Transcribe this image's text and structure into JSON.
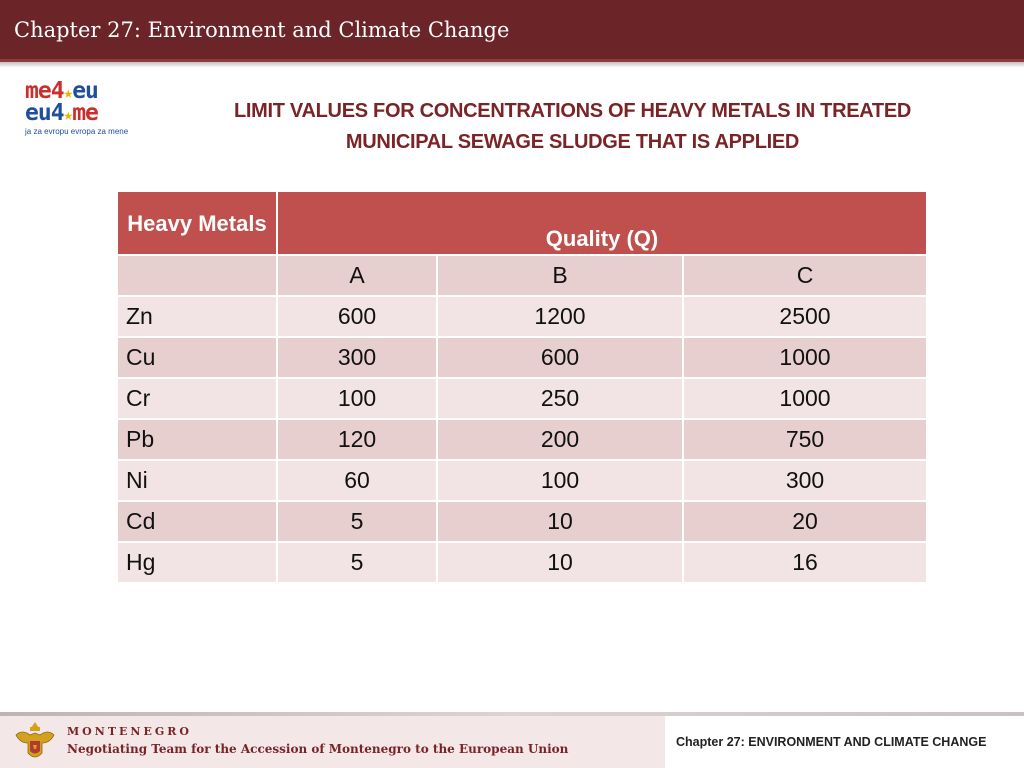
{
  "header": {
    "title": "Chapter 27: Environment and Climate Change"
  },
  "logo": {
    "line1_a": "me4",
    "line1_b": "eu",
    "line2_a": "eu4",
    "line2_b": "me",
    "tagline": "ja za evropu evropa za mene"
  },
  "page_title": "LIMIT VALUES FOR CONCENTRATIONS OF HEAVY METALS IN TREATED MUNICIPAL SEWAGE SLUDGE THAT IS APPLIED",
  "table": {
    "header_metals": "Heavy Metals",
    "header_quality": "Quality (Q)",
    "subheaders": [
      "A",
      "B",
      "C"
    ],
    "rows": [
      {
        "metal": "Zn",
        "a": "600",
        "b": "1200",
        "c": "2500"
      },
      {
        "metal": "Cu",
        "a": "300",
        "b": "600",
        "c": "1000"
      },
      {
        "metal": "Cr",
        "a": "100",
        "b": "250",
        "c": "1000"
      },
      {
        "metal": "Pb",
        "a": "120",
        "b": "200",
        "c": "750"
      },
      {
        "metal": "Ni",
        "a": "60",
        "b": "100",
        "c": "300"
      },
      {
        "metal": "Cd",
        "a": "5",
        "b": "10",
        "c": "20"
      },
      {
        "metal": "Hg",
        "a": "5",
        "b": "10",
        "c": "16"
      }
    ]
  },
  "footer": {
    "country": "MONTENEGRO",
    "team": "Negotiating Team for the Accession of  Montenegro to the European Union",
    "chapter": "Chapter 27:  ENVIRONMENT AND CLIMATE CHANGE"
  },
  "colors": {
    "header_bg": "#6b2427",
    "table_header": "#c0504d",
    "row_light": "#f2e4e4",
    "row_dark": "#e8cfcf",
    "title_text": "#7a2427"
  }
}
